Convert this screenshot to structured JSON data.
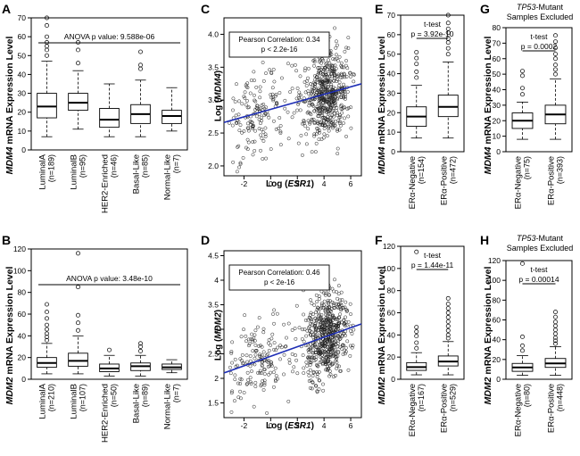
{
  "figure": {
    "A": {
      "letter": "A",
      "ylabel_gene": "MDM4",
      "ylabel_rest": " mRNA Expression Level"
    },
    "B": {
      "letter": "B",
      "ylabel_gene": "MDM2",
      "ylabel_rest": " mRNA Expression Level"
    },
    "C": {
      "letter": "C"
    },
    "D": {
      "letter": "D"
    },
    "E": {
      "letter": "E",
      "ylabel_gene": "MDM4",
      "ylabel_rest": " mRNA Expression Level"
    },
    "F": {
      "letter": "F",
      "ylabel_gene": "MDM2",
      "ylabel_rest": " mRNA Expression Level"
    },
    "G": {
      "letter": "G",
      "ylabel_gene": "MDM4",
      "ylabel_rest": " mRNA Expression Level",
      "excluded_gene": "TP53",
      "excluded_rest": "-Mutant",
      "excluded_line2": "Samples Excluded"
    },
    "H": {
      "letter": "H",
      "ylabel_gene": "MDM2",
      "ylabel_rest": " mRNA Expression Level",
      "excluded_gene": "TP53",
      "excluded_rest": "-Mutant",
      "excluded_line2": "Samples Excluded"
    }
  },
  "chart_data": [
    {
      "id": "A",
      "type": "box",
      "ylim": [
        0,
        70
      ],
      "yticks": [
        0,
        10,
        20,
        30,
        40,
        50,
        60,
        70
      ],
      "annotation": "ANOVA p value: 9.588e-06",
      "categories": [
        {
          "name": "LuminalA",
          "n": "(n=189)",
          "whislo": 7,
          "q1": 17,
          "med": 23,
          "q3": 30,
          "whishi": 47,
          "outliers": [
            50,
            53,
            55,
            57,
            60,
            66,
            70
          ]
        },
        {
          "name": "LuminalB",
          "n": "(n=95)",
          "whislo": 11,
          "q1": 21,
          "med": 25,
          "q3": 30,
          "whishi": 42,
          "outliers": [
            46,
            53,
            57
          ]
        },
        {
          "name": "HER2-Enriched",
          "n": "(n=46)",
          "whislo": 7,
          "q1": 12,
          "med": 16,
          "q3": 22,
          "whishi": 35,
          "outliers": []
        },
        {
          "name": "Basal-Like",
          "n": "(n=85)",
          "whislo": 7,
          "q1": 14,
          "med": 19,
          "q3": 24,
          "whishi": 37,
          "outliers": [
            43,
            45,
            52
          ]
        },
        {
          "name": "Normal-Like",
          "n": "(n=7)",
          "whislo": 10,
          "q1": 14,
          "med": 18,
          "q3": 21,
          "whishi": 33,
          "outliers": []
        }
      ]
    },
    {
      "id": "B",
      "type": "box",
      "ylim": [
        0,
        120
      ],
      "yticks": [
        0,
        20,
        40,
        60,
        80,
        100,
        120
      ],
      "annotation": "ANOVA p value: 3.48e-10",
      "categories": [
        {
          "name": "LuminalA",
          "n": "(n=210)",
          "whislo": 5,
          "q1": 11,
          "med": 15,
          "q3": 20,
          "whishi": 33,
          "outliers": [
            36,
            39,
            42,
            46,
            50,
            56,
            62,
            69
          ]
        },
        {
          "name": "LuminalB",
          "n": "(n=107)",
          "whislo": 5,
          "q1": 12,
          "med": 17,
          "q3": 24,
          "whishi": 40,
          "outliers": [
            45,
            52,
            59,
            85,
            116
          ]
        },
        {
          "name": "HER2-Enriched",
          "n": "(n=50)",
          "whislo": 3,
          "q1": 7,
          "med": 10,
          "q3": 14,
          "whishi": 22,
          "outliers": [
            27
          ]
        },
        {
          "name": "Basal-Like",
          "n": "(n=89)",
          "whislo": 3,
          "q1": 8,
          "med": 12,
          "q3": 15,
          "whishi": 22,
          "outliers": [
            26,
            30,
            33
          ]
        },
        {
          "name": "Normal-Like",
          "n": "(n=7)",
          "whislo": 6,
          "q1": 9,
          "med": 11,
          "q3": 14,
          "whishi": 18,
          "outliers": []
        }
      ]
    },
    {
      "id": "C",
      "type": "scatter",
      "xlabel_pre": "Log (",
      "xlabel_gene": "ESR1",
      "xlabel_post": ")",
      "ylabel_pre": "Log (",
      "ylabel_gene": "MDM4",
      "ylabel_post": ")",
      "xlim": [
        -3.5,
        6.8
      ],
      "ylim": [
        1.85,
        4.25
      ],
      "xticks": [
        -2,
        0,
        2,
        4,
        6
      ],
      "yticks": [
        2.0,
        2.5,
        3.0,
        3.5,
        4.0
      ],
      "ytick_labels": [
        "2.0",
        "2.5",
        "3.0",
        "3.5",
        "4.0"
      ],
      "annotation_line1": "Pearson Correlation: 0.34",
      "annotation_line2": "p < 2.2e-16",
      "regression": {
        "intercept": 2.86,
        "slope": 0.057
      },
      "seed": 17,
      "n_points": 720
    },
    {
      "id": "D",
      "type": "scatter",
      "xlabel_pre": "Log (",
      "xlabel_gene": "ESR1",
      "xlabel_post": ")",
      "ylabel_pre": "Log (",
      "ylabel_gene": "MDM2",
      "ylabel_post": ")",
      "xlim": [
        -3.5,
        6.8
      ],
      "ylim": [
        1.2,
        4.6
      ],
      "xticks": [
        -2,
        0,
        2,
        4,
        6
      ],
      "yticks": [
        1.5,
        2.0,
        2.5,
        3.0,
        3.5,
        4.0,
        4.5
      ],
      "ytick_labels": [
        "1.5",
        "2",
        "2.5",
        "3",
        "3.5",
        "4",
        "4.5"
      ],
      "annotation_line1": "Pearson Correlation: 0.46",
      "annotation_line2": "p < 2e-16",
      "regression": {
        "intercept": 2.45,
        "slope": 0.097
      },
      "seed": 29,
      "n_points": 760
    },
    {
      "id": "E",
      "type": "box",
      "ylim": [
        0,
        70
      ],
      "yticks": [
        0,
        10,
        20,
        30,
        40,
        50,
        60,
        70
      ],
      "test": "t-test",
      "pvalue": "p = 3.92e-10",
      "categories": [
        {
          "name": "ERα-Negative",
          "n": "(n=154)",
          "whislo": 7,
          "q1": 13,
          "med": 18,
          "q3": 23,
          "whishi": 34,
          "outliers": [
            38,
            41,
            45,
            48,
            51
          ]
        },
        {
          "name": "ERα-Positive",
          "n": "(n=472)",
          "whislo": 7,
          "q1": 18,
          "med": 23,
          "q3": 29,
          "whishi": 46,
          "outliers": [
            50,
            53,
            56,
            58,
            61,
            63,
            66,
            70
          ]
        }
      ]
    },
    {
      "id": "F",
      "type": "box",
      "ylim": [
        0,
        120
      ],
      "yticks": [
        0,
        20,
        40,
        60,
        80,
        100,
        120
      ],
      "test": "t-test",
      "pvalue": "p = 1.44e-11",
      "categories": [
        {
          "name": "ERα-Negative",
          "n": "(n=167)",
          "whislo": 4,
          "q1": 8,
          "med": 11,
          "q3": 15,
          "whishi": 24,
          "outliers": [
            28,
            33,
            39,
            43,
            47,
            115
          ]
        },
        {
          "name": "ERα-Positive",
          "n": "(n=529)",
          "whislo": 4,
          "q1": 12,
          "med": 16,
          "q3": 21,
          "whishi": 34,
          "outliers": [
            37,
            40,
            44,
            48,
            52,
            56,
            60,
            64,
            68,
            73
          ]
        }
      ]
    },
    {
      "id": "G",
      "type": "box",
      "ylim": [
        0,
        80
      ],
      "yticks": [
        0,
        10,
        20,
        30,
        40,
        50,
        60,
        70,
        80
      ],
      "test": "t-test",
      "pvalue": "p = 0.0002",
      "categories": [
        {
          "name": "ERα-Negative",
          "n": "(n=75)",
          "whislo": 8,
          "q1": 15,
          "med": 20,
          "q3": 25,
          "whishi": 32,
          "outliers": [
            37,
            41,
            49,
            52
          ]
        },
        {
          "name": "ERα-Positive",
          "n": "(n=393)",
          "whislo": 8,
          "q1": 18,
          "med": 24,
          "q3": 30,
          "whishi": 47,
          "outliers": [
            50,
            53,
            56,
            60,
            63,
            67,
            71,
            75
          ]
        }
      ]
    },
    {
      "id": "H",
      "type": "box",
      "ylim": [
        0,
        120
      ],
      "yticks": [
        0,
        20,
        40,
        60,
        80,
        100,
        120
      ],
      "test": "t-test",
      "pvalue": "p = 0.00014",
      "categories": [
        {
          "name": "ERα-Negative",
          "n": "(n=80)",
          "whislo": 4,
          "q1": 8,
          "med": 12,
          "q3": 16,
          "whishi": 24,
          "outliers": [
            29,
            34,
            43,
            117
          ]
        },
        {
          "name": "ERα-Positive",
          "n": "(n=448)",
          "whislo": 4,
          "q1": 12,
          "med": 16,
          "q3": 21,
          "whishi": 33,
          "outliers": [
            36,
            39,
            42,
            46,
            50,
            54,
            58,
            63,
            68
          ]
        }
      ]
    }
  ]
}
